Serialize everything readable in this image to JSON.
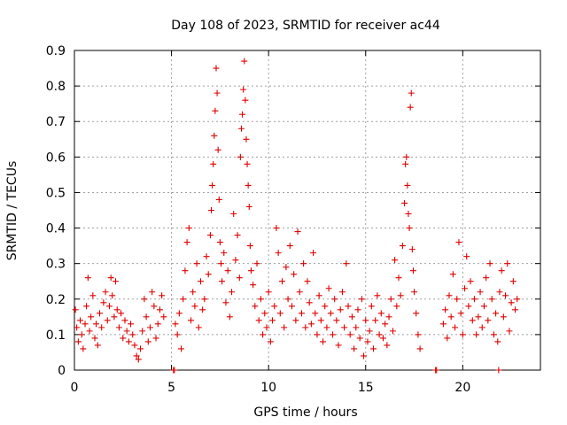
{
  "chart_data": {
    "type": "scatter",
    "title": "Day 108 of 2023, SRMTID for receiver ac44",
    "xlabel": "GPS time / hours",
    "ylabel": "SRMTID / TECUs",
    "xlim": [
      0,
      24
    ],
    "ylim": [
      0,
      0.9
    ],
    "xticks": [
      0,
      5,
      10,
      15,
      20
    ],
    "xtick_labels": [
      "0",
      "5",
      "10",
      "15",
      "20"
    ],
    "yticks": [
      0,
      0.1,
      0.2,
      0.3,
      0.4,
      0.5,
      0.6,
      0.7,
      0.8,
      0.9
    ],
    "ytick_labels": [
      "0",
      "0.1",
      "0.2",
      "0.3",
      "0.4",
      "0.5",
      "0.6",
      "0.7",
      "0.8",
      "0.9"
    ],
    "grid": true,
    "marker": "plus",
    "color": "#e00000",
    "series": [
      {
        "name": "SRMTID",
        "points": [
          [
            0.05,
            0.17
          ],
          [
            0.12,
            0.12
          ],
          [
            0.2,
            0.08
          ],
          [
            0.3,
            0.14
          ],
          [
            0.38,
            0.1
          ],
          [
            0.45,
            0.06
          ],
          [
            0.55,
            0.13
          ],
          [
            0.62,
            0.18
          ],
          [
            0.7,
            0.26
          ],
          [
            0.78,
            0.11
          ],
          [
            0.85,
            0.15
          ],
          [
            0.95,
            0.21
          ],
          [
            1.05,
            0.09
          ],
          [
            1.12,
            0.13
          ],
          [
            1.2,
            0.07
          ],
          [
            1.3,
            0.16
          ],
          [
            1.4,
            0.12
          ],
          [
            1.5,
            0.19
          ],
          [
            1.6,
            0.22
          ],
          [
            1.7,
            0.14
          ],
          [
            1.8,
            0.18
          ],
          [
            1.88,
            0.26
          ],
          [
            1.95,
            0.21
          ],
          [
            2.05,
            0.15
          ],
          [
            2.12,
            0.25
          ],
          [
            2.2,
            0.17
          ],
          [
            2.3,
            0.12
          ],
          [
            2.4,
            0.16
          ],
          [
            2.5,
            0.09
          ],
          [
            2.6,
            0.14
          ],
          [
            2.7,
            0.11
          ],
          [
            2.8,
            0.08
          ],
          [
            2.9,
            0.13
          ],
          [
            3.0,
            0.1
          ],
          [
            3.1,
            0.07
          ],
          [
            3.2,
            0.04
          ],
          [
            3.3,
            0.03
          ],
          [
            3.4,
            0.06
          ],
          [
            3.5,
            0.11
          ],
          [
            3.6,
            0.2
          ],
          [
            3.7,
            0.15
          ],
          [
            3.8,
            0.08
          ],
          [
            3.9,
            0.12
          ],
          [
            4.0,
            0.22
          ],
          [
            4.1,
            0.18
          ],
          [
            4.2,
            0.09
          ],
          [
            4.3,
            0.13
          ],
          [
            4.4,
            0.17
          ],
          [
            4.5,
            0.21
          ],
          [
            4.6,
            0.15
          ],
          [
            5.2,
            0.13
          ],
          [
            5.3,
            0.1
          ],
          [
            5.4,
            0.16
          ],
          [
            5.5,
            0.06
          ],
          [
            5.6,
            0.2
          ],
          [
            5.7,
            0.28
          ],
          [
            5.8,
            0.36
          ],
          [
            5.9,
            0.4
          ],
          [
            6.0,
            0.14
          ],
          [
            6.1,
            0.22
          ],
          [
            6.2,
            0.18
          ],
          [
            6.3,
            0.3
          ],
          [
            6.4,
            0.12
          ],
          [
            6.5,
            0.25
          ],
          [
            6.6,
            0.17
          ],
          [
            6.7,
            0.2
          ],
          [
            6.8,
            0.32
          ],
          [
            6.9,
            0.27
          ],
          [
            7.0,
            0.38
          ],
          [
            7.05,
            0.45
          ],
          [
            7.1,
            0.52
          ],
          [
            7.15,
            0.58
          ],
          [
            7.2,
            0.66
          ],
          [
            7.25,
            0.73
          ],
          [
            7.3,
            0.85
          ],
          [
            7.35,
            0.78
          ],
          [
            7.4,
            0.62
          ],
          [
            7.45,
            0.48
          ],
          [
            7.5,
            0.36
          ],
          [
            7.55,
            0.3
          ],
          [
            7.6,
            0.25
          ],
          [
            7.7,
            0.33
          ],
          [
            7.8,
            0.19
          ],
          [
            7.9,
            0.28
          ],
          [
            8.0,
            0.15
          ],
          [
            8.1,
            0.22
          ],
          [
            8.2,
            0.44
          ],
          [
            8.3,
            0.31
          ],
          [
            8.4,
            0.38
          ],
          [
            8.5,
            0.26
          ],
          [
            8.55,
            0.6
          ],
          [
            8.6,
            0.68
          ],
          [
            8.65,
            0.72
          ],
          [
            8.7,
            0.79
          ],
          [
            8.75,
            0.87
          ],
          [
            8.8,
            0.76
          ],
          [
            8.85,
            0.65
          ],
          [
            8.9,
            0.58
          ],
          [
            8.95,
            0.52
          ],
          [
            9.0,
            0.46
          ],
          [
            9.05,
            0.35
          ],
          [
            9.1,
            0.28
          ],
          [
            9.2,
            0.24
          ],
          [
            9.3,
            0.18
          ],
          [
            9.4,
            0.3
          ],
          [
            9.5,
            0.14
          ],
          [
            9.6,
            0.2
          ],
          [
            9.7,
            0.1
          ],
          [
            9.8,
            0.16
          ],
          [
            9.9,
            0.12
          ],
          [
            10.0,
            0.22
          ],
          [
            10.1,
            0.08
          ],
          [
            10.2,
            0.14
          ],
          [
            10.3,
            0.18
          ],
          [
            10.4,
            0.4
          ],
          [
            10.5,
            0.33
          ],
          [
            10.6,
            0.16
          ],
          [
            10.7,
            0.25
          ],
          [
            10.8,
            0.12
          ],
          [
            10.9,
            0.29
          ],
          [
            11.0,
            0.2
          ],
          [
            11.1,
            0.35
          ],
          [
            11.2,
            0.18
          ],
          [
            11.3,
            0.27
          ],
          [
            11.4,
            0.14
          ],
          [
            11.5,
            0.39
          ],
          [
            11.6,
            0.22
          ],
          [
            11.7,
            0.16
          ],
          [
            11.8,
            0.3
          ],
          [
            11.9,
            0.12
          ],
          [
            12.0,
            0.25
          ],
          [
            12.1,
            0.19
          ],
          [
            12.2,
            0.13
          ],
          [
            12.3,
            0.33
          ],
          [
            12.4,
            0.16
          ],
          [
            12.5,
            0.1
          ],
          [
            12.6,
            0.21
          ],
          [
            12.7,
            0.14
          ],
          [
            12.8,
            0.08
          ],
          [
            12.9,
            0.18
          ],
          [
            13.0,
            0.12
          ],
          [
            13.1,
            0.23
          ],
          [
            13.2,
            0.16
          ],
          [
            13.3,
            0.1
          ],
          [
            13.4,
            0.2
          ],
          [
            13.5,
            0.14
          ],
          [
            13.6,
            0.07
          ],
          [
            13.7,
            0.17
          ],
          [
            13.8,
            0.22
          ],
          [
            13.9,
            0.12
          ],
          [
            14.0,
            0.3
          ],
          [
            14.1,
            0.18
          ],
          [
            14.2,
            0.1
          ],
          [
            14.3,
            0.15
          ],
          [
            14.4,
            0.06
          ],
          [
            14.5,
            0.12
          ],
          [
            14.6,
            0.17
          ],
          [
            14.7,
            0.09
          ],
          [
            14.8,
            0.2
          ],
          [
            14.9,
            0.04
          ],
          [
            15.0,
            0.14
          ],
          [
            15.1,
            0.08
          ],
          [
            15.2,
            0.11
          ],
          [
            15.3,
            0.18
          ],
          [
            15.4,
            0.06
          ],
          [
            15.5,
            0.14
          ],
          [
            15.6,
            0.21
          ],
          [
            15.7,
            0.1
          ],
          [
            15.8,
            0.16
          ],
          [
            15.9,
            0.09
          ],
          [
            16.0,
            0.13
          ],
          [
            16.1,
            0.07
          ],
          [
            16.2,
            0.15
          ],
          [
            16.3,
            0.2
          ],
          [
            16.4,
            0.11
          ],
          [
            16.5,
            0.31
          ],
          [
            16.6,
            0.18
          ],
          [
            16.7,
            0.26
          ],
          [
            16.8,
            0.21
          ],
          [
            16.9,
            0.35
          ],
          [
            17.0,
            0.47
          ],
          [
            17.05,
            0.58
          ],
          [
            17.1,
            0.6
          ],
          [
            17.15,
            0.52
          ],
          [
            17.2,
            0.44
          ],
          [
            17.25,
            0.4
          ],
          [
            17.3,
            0.74
          ],
          [
            17.35,
            0.78
          ],
          [
            17.4,
            0.34
          ],
          [
            17.45,
            0.28
          ],
          [
            17.5,
            0.22
          ],
          [
            17.6,
            0.16
          ],
          [
            17.7,
            0.1
          ],
          [
            17.8,
            0.06
          ],
          [
            18.6,
            0.0
          ],
          [
            19.0,
            0.13
          ],
          [
            19.1,
            0.17
          ],
          [
            19.2,
            0.09
          ],
          [
            19.3,
            0.21
          ],
          [
            19.4,
            0.15
          ],
          [
            19.5,
            0.27
          ],
          [
            19.6,
            0.12
          ],
          [
            19.7,
            0.2
          ],
          [
            19.8,
            0.36
          ],
          [
            19.9,
            0.16
          ],
          [
            20.0,
            0.1
          ],
          [
            20.1,
            0.23
          ],
          [
            20.2,
            0.32
          ],
          [
            20.3,
            0.18
          ],
          [
            20.4,
            0.25
          ],
          [
            20.5,
            0.14
          ],
          [
            20.6,
            0.2
          ],
          [
            20.7,
            0.1
          ],
          [
            20.8,
            0.15
          ],
          [
            20.9,
            0.22
          ],
          [
            21.0,
            0.12
          ],
          [
            21.1,
            0.18
          ],
          [
            21.2,
            0.26
          ],
          [
            21.3,
            0.14
          ],
          [
            21.4,
            0.3
          ],
          [
            21.5,
            0.2
          ],
          [
            21.6,
            0.1
          ],
          [
            21.7,
            0.16
          ],
          [
            21.8,
            0.08
          ],
          [
            21.9,
            0.22
          ],
          [
            22.0,
            0.28
          ],
          [
            22.1,
            0.15
          ],
          [
            22.2,
            0.21
          ],
          [
            22.3,
            0.3
          ],
          [
            22.4,
            0.11
          ],
          [
            22.5,
            0.19
          ],
          [
            22.6,
            0.25
          ],
          [
            22.7,
            0.17
          ],
          [
            22.8,
            0.2
          ],
          [
            5.1,
            0.0
          ],
          [
            5.15,
            0.0
          ],
          [
            18.65,
            0.0
          ],
          [
            21.85,
            0.0
          ]
        ]
      }
    ]
  }
}
